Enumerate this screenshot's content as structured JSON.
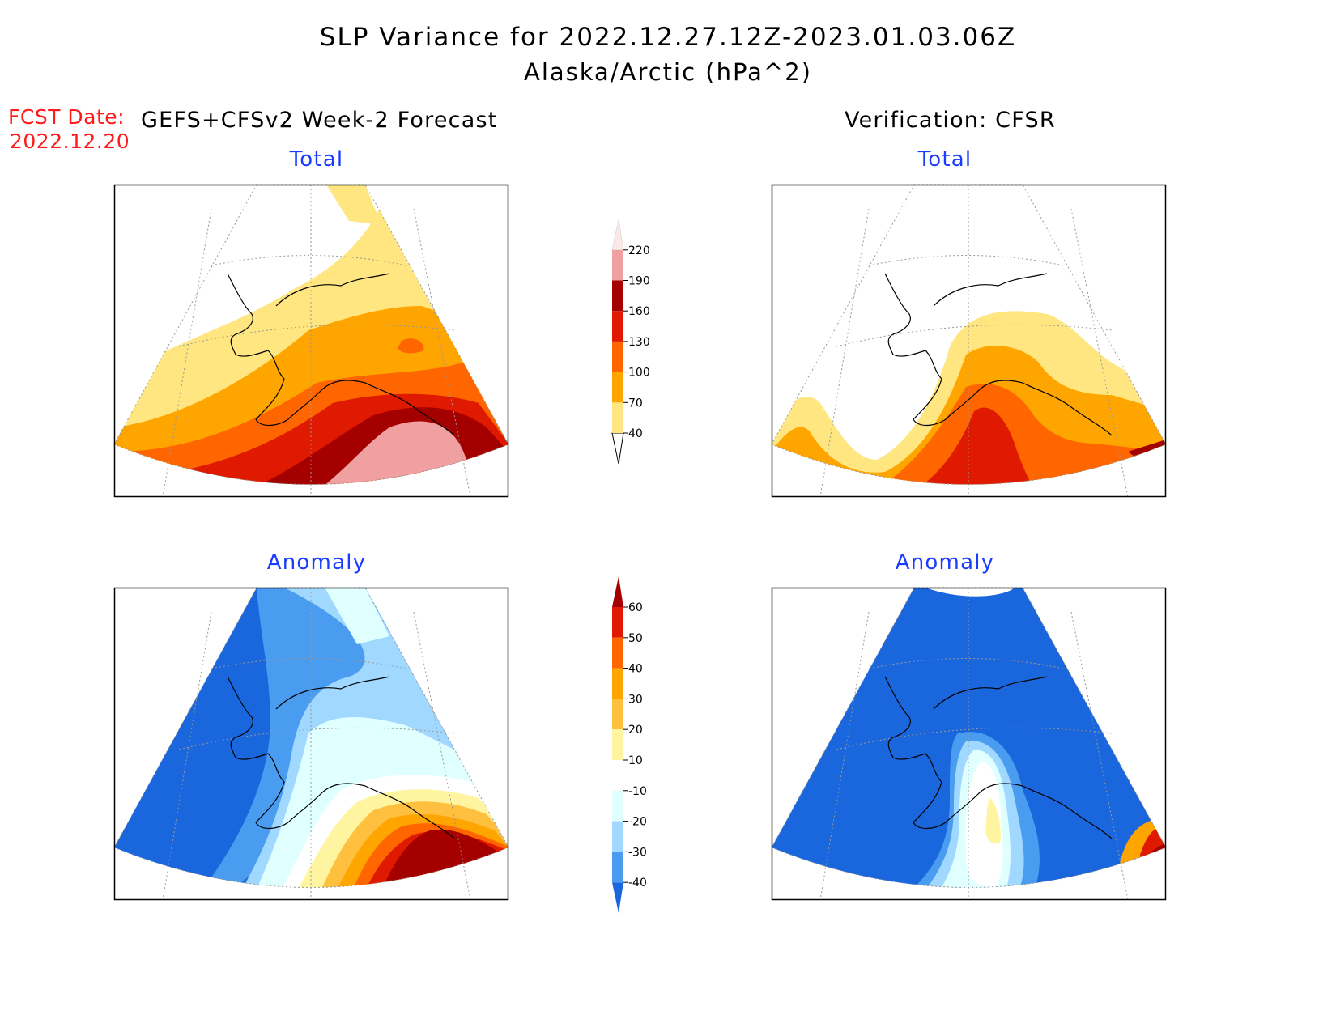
{
  "title": "SLP Variance for 2022.12.27.12Z-2023.01.03.06Z",
  "subtitle": "Alaska/Arctic (hPa^2)",
  "forecast_date": {
    "label": "FCST Date:",
    "value": "2022.12.20"
  },
  "forecast_column": {
    "heading": "GEFS+CFSv2 Week-2 Forecast"
  },
  "verification_column": {
    "heading": "Verification: CFSR"
  },
  "panels": {
    "forecast_total": {
      "title": "Total"
    },
    "verification_total": {
      "title": "Total"
    },
    "forecast_anomaly": {
      "title": "Anomaly"
    },
    "verification_anomaly": {
      "title": "Anomaly"
    }
  },
  "colorbars": {
    "total": {
      "levels": [
        "40",
        "70",
        "100",
        "130",
        "160",
        "190",
        "220"
      ],
      "colors": [
        "#ffe680",
        "#ffa500",
        "#ff6600",
        "#e01a00",
        "#a50000",
        "#f0a0a0",
        "#fde8e8"
      ]
    },
    "anomaly": {
      "levels": [
        "60",
        "50",
        "40",
        "30",
        "20",
        "10",
        "-10",
        "-20",
        "-30",
        "-40"
      ],
      "colors": [
        "#a50000",
        "#e01a00",
        "#ff6600",
        "#ffa500",
        "#ffc040",
        "#fff5a0",
        "#ffffff",
        "#e0ffff",
        "#a0d8ff",
        "#4a9cf0",
        "#1a66dd"
      ]
    }
  },
  "palette": {
    "total": {
      "t40": "#ffe680",
      "t70": "#ffa500",
      "t100": "#ff6600",
      "t130": "#e01a00",
      "t160": "#a50000",
      "t190": "#f0a0a0"
    },
    "anomaly": {
      "n40": "#1a66dd",
      "n30": "#4a9cf0",
      "n20": "#a0d8ff",
      "n10": "#e0ffff",
      "z": "#ffffff",
      "p10": "#fff5a0",
      "p20": "#ffc040",
      "p30": "#ffa500",
      "p40": "#ff6600",
      "p50": "#e01a00",
      "p60": "#a50000"
    }
  }
}
